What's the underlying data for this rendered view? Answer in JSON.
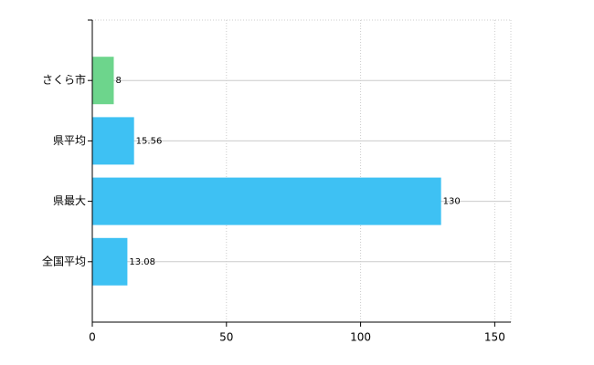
{
  "chart_data": {
    "type": "barh",
    "categories": [
      "さくら市",
      "県平均",
      "県最大",
      "全国平均"
    ],
    "values": [
      8,
      15.56,
      130,
      13.08
    ],
    "colors": [
      "#6dd58c",
      "#3ec1f3",
      "#3ec1f3",
      "#3ec1f3"
    ],
    "xlim": [
      0,
      156
    ],
    "xticks": [
      0,
      50,
      100,
      150
    ],
    "grid": true
  }
}
